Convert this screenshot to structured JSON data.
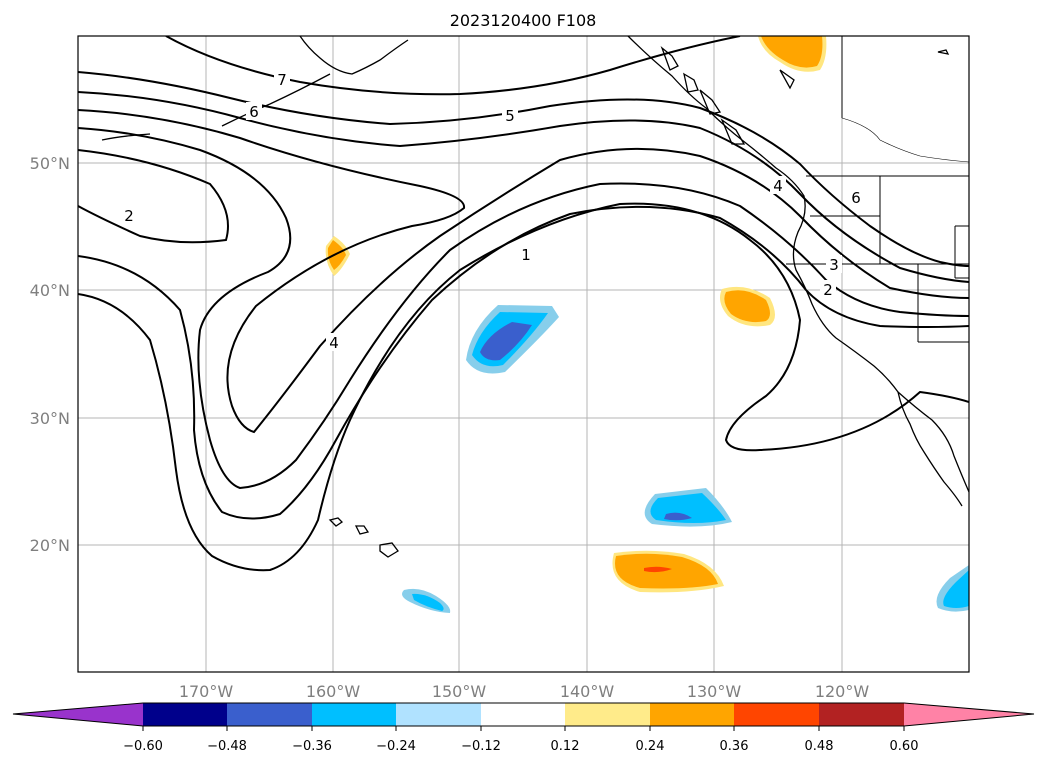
{
  "title": "2023120400 F108",
  "lat_labels": [
    "50°N",
    "40°N",
    "30°N",
    "20°N"
  ],
  "lon_labels": [
    "170°W",
    "160°W",
    "150°W",
    "140°W",
    "130°W",
    "120°W"
  ],
  "contour_labels": [
    "7",
    "6",
    "5",
    "4",
    "2",
    "4",
    "1",
    "3",
    "2",
    "6"
  ],
  "colorbar": {
    "colors": [
      "#9933cc",
      "#00008b",
      "#3a5fcd",
      "#00bfff",
      "#b0e2ff",
      "#ffffff",
      "#ffeb8a",
      "#ffa500",
      "#ff4500",
      "#b22222",
      "#ff82a6"
    ],
    "tick_labels": [
      "−0.60",
      "−0.48",
      "−0.36",
      "−0.24",
      "−0.12",
      "0.12",
      "0.24",
      "0.36",
      "0.48",
      "0.60"
    ]
  },
  "fill_colors": {
    "light_orange": "#ffe680",
    "orange": "#ffa500",
    "red_orange": "#ff4500",
    "light_blue": "#87ceeb",
    "blue": "#00bfff",
    "royal_blue": "#3a5fcd"
  }
}
